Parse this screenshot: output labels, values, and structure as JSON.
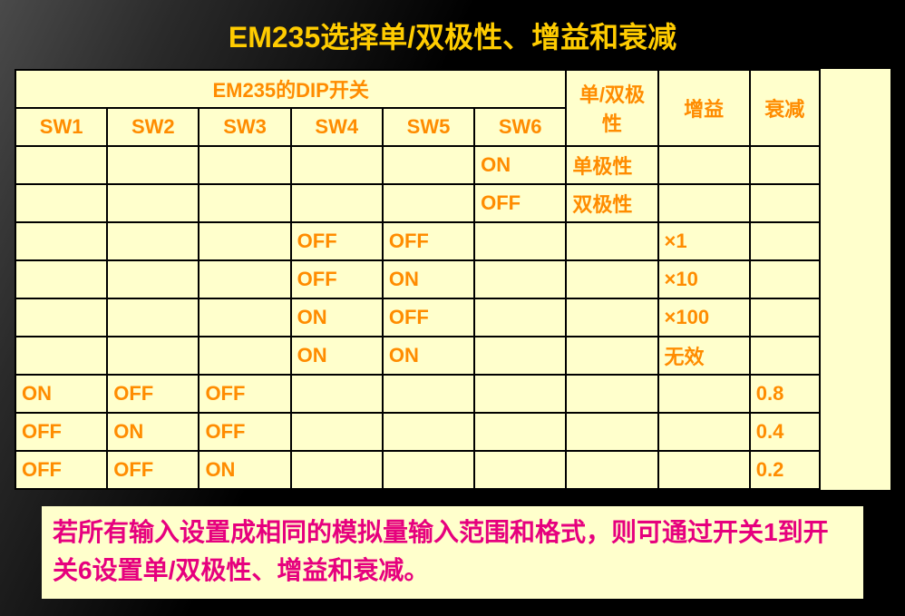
{
  "colors": {
    "title_color": "#ffcc00",
    "table_bg": "#ffffcc",
    "table_text": "#ff8c00",
    "note_bg": "#ffffcc",
    "note_text": "#e6007e",
    "border_color": "#000000"
  },
  "fonts": {
    "title_size": 32,
    "table_header_size": 22,
    "table_cell_size": 22,
    "note_size": 28
  },
  "layout": {
    "col_widths_pct": [
      10.5,
      10.5,
      10.5,
      10.5,
      10.5,
      10.5,
      10.5,
      10.5,
      8,
      8
    ]
  },
  "title": "EM235选择单/双极性、增益和衰减",
  "table": {
    "header_group": "EM235的DIP开关",
    "header_polarity": "单/双极性",
    "header_gain": "增益",
    "header_atten": "衰减",
    "sw_labels": [
      "SW1",
      "SW2",
      "SW3",
      "SW4",
      "SW5",
      "SW6"
    ],
    "rows": [
      {
        "sw": [
          "",
          "",
          "",
          "",
          "",
          "ON"
        ],
        "polarity": "单极性",
        "gain": "",
        "atten": ""
      },
      {
        "sw": [
          "",
          "",
          "",
          "",
          "",
          "OFF"
        ],
        "polarity": "双极性",
        "gain": "",
        "atten": ""
      },
      {
        "sw": [
          "",
          "",
          "",
          "OFF",
          "OFF",
          ""
        ],
        "polarity": "",
        "gain": "×1",
        "atten": ""
      },
      {
        "sw": [
          "",
          "",
          "",
          "OFF",
          "ON",
          ""
        ],
        "polarity": "",
        "gain": "×10",
        "atten": ""
      },
      {
        "sw": [
          "",
          "",
          "",
          "ON",
          "OFF",
          ""
        ],
        "polarity": "",
        "gain": "×100",
        "atten": ""
      },
      {
        "sw": [
          "",
          "",
          "",
          "ON",
          "ON",
          ""
        ],
        "polarity": "",
        "gain": "无效",
        "atten": ""
      },
      {
        "sw": [
          "ON",
          "OFF",
          "OFF",
          "",
          "",
          ""
        ],
        "polarity": "",
        "gain": "",
        "atten": "0.8"
      },
      {
        "sw": [
          "OFF",
          "ON",
          "OFF",
          "",
          "",
          ""
        ],
        "polarity": "",
        "gain": "",
        "atten": "0.4"
      },
      {
        "sw": [
          "OFF",
          "OFF",
          "ON",
          "",
          "",
          ""
        ],
        "polarity": "",
        "gain": "",
        "atten": "0.2"
      }
    ]
  },
  "note": "若所有输入设置成相同的模拟量输入范围和格式，则可通过开关1到开关6设置单/双极性、增益和衰减。"
}
